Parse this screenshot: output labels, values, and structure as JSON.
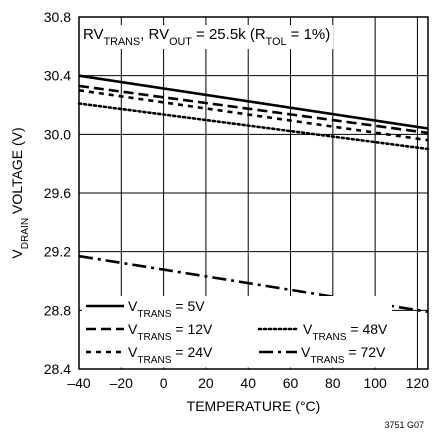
{
  "chart_data": {
    "type": "line",
    "annotation": {
      "parts": [
        {
          "t": "RV",
          "sub": false
        },
        {
          "t": "TRANS",
          "sub": true
        },
        {
          "t": ", RV",
          "sub": false
        },
        {
          "t": "OUT",
          "sub": true
        },
        {
          "t": " = 25.5k (R",
          "sub": false
        },
        {
          "t": "TOL",
          "sub": true
        },
        {
          "t": " = 1%)",
          "sub": false
        }
      ]
    },
    "xlabel": "TEMPERATURE (°C)",
    "ylabel": {
      "parts": [
        {
          "t": "V",
          "sub": false
        },
        {
          "t": "DRAIN",
          "sub": true
        },
        {
          "t": " VOLTAGE (V)",
          "sub": false
        }
      ]
    },
    "xlim": [
      -40,
      125
    ],
    "ylim": [
      28.4,
      30.8
    ],
    "x_ticks": [
      -40,
      -20,
      0,
      20,
      40,
      60,
      80,
      100,
      120
    ],
    "x_tick_labels": [
      "–40",
      "–20",
      "0",
      "20",
      "40",
      "60",
      "80",
      "100",
      "120"
    ],
    "y_ticks": [
      28.4,
      28.8,
      29.2,
      29.6,
      30.0,
      30.4,
      30.8
    ],
    "y_tick_labels": [
      "28.4",
      "28.8",
      "29.2",
      "29.6",
      "30.0",
      "30.4",
      "30.8"
    ],
    "grid": true,
    "legend_position": "bottom-left",
    "series": [
      {
        "name_main": "V",
        "name_sub": "TRANS",
        "name_tail": " = 5V",
        "style": "solid",
        "x": [
          -40,
          125
        ],
        "y": [
          30.4,
          30.04
        ]
      },
      {
        "name_main": "V",
        "name_sub": "TRANS",
        "name_tail": " = 12V",
        "style": "dashed",
        "x": [
          -40,
          125
        ],
        "y": [
          30.33,
          30.01
        ]
      },
      {
        "name_main": "V",
        "name_sub": "TRANS",
        "name_tail": " = 24V",
        "style": "short-dashed",
        "x": [
          -40,
          125
        ],
        "y": [
          30.3,
          29.96
        ]
      },
      {
        "name_main": "V",
        "name_sub": "TRANS",
        "name_tail": " = 48V",
        "style": "dotted",
        "x": [
          -40,
          125
        ],
        "y": [
          30.21,
          29.9
        ]
      },
      {
        "name_main": "V",
        "name_sub": "TRANS",
        "name_tail": " = 72V",
        "style": "dash-dot",
        "x": [
          -40,
          125
        ],
        "y": [
          29.17,
          28.79
        ]
      }
    ],
    "code": "3751 G07"
  }
}
